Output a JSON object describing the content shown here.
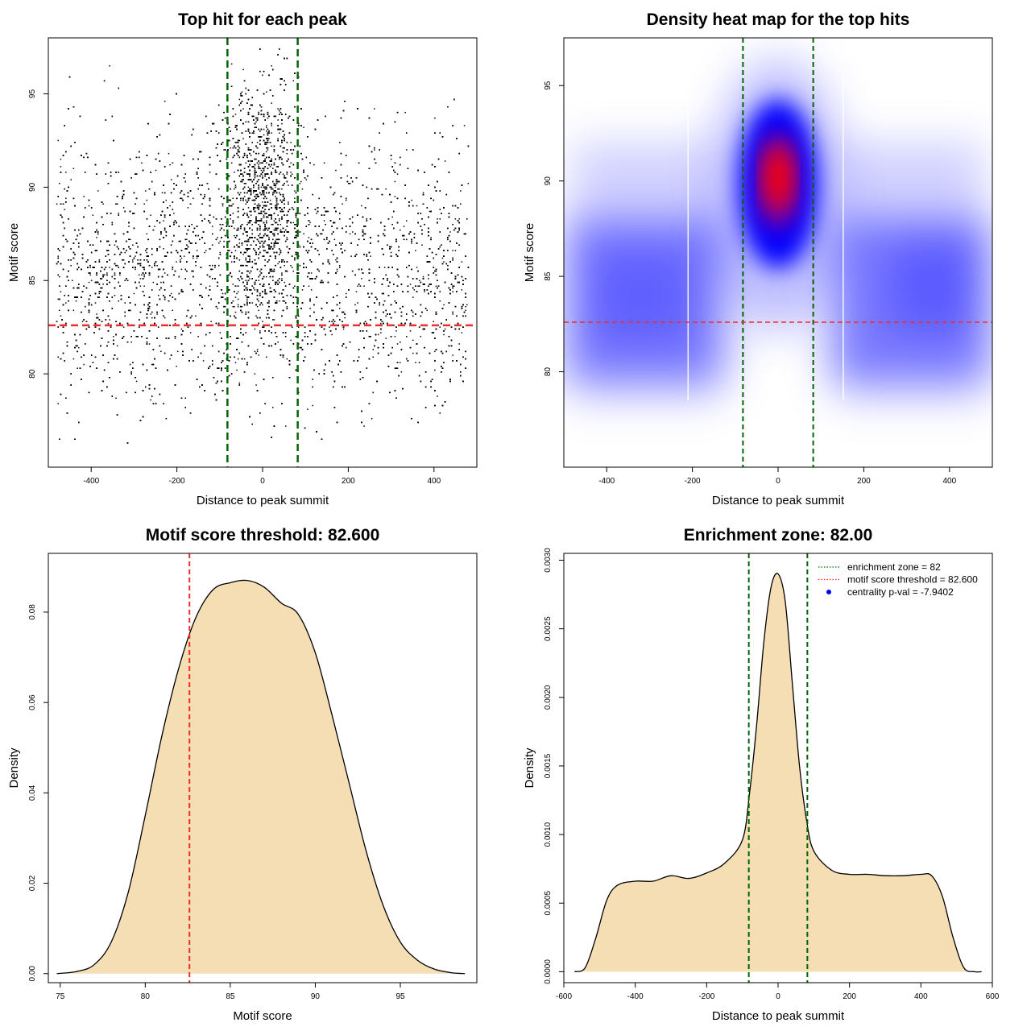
{
  "chart_data": [
    {
      "type": "scatter",
      "title": "Top hit for each peak",
      "xlabel": "Distance to peak summit",
      "ylabel": "Motif score",
      "xlim": [
        -500,
        500
      ],
      "ylim": [
        75,
        98
      ],
      "xticks": [
        -400,
        -200,
        0,
        200,
        400
      ],
      "yticks": [
        80,
        85,
        90,
        95
      ],
      "points_summary": {
        "n": 15000,
        "x_range": [
          -480,
          480
        ],
        "y_range": [
          76,
          97.5
        ],
        "background_mean_y": 85.5,
        "background_sd_y": 3.5,
        "central_cluster": {
          "x_center": 0,
          "x_sd": 42,
          "y_center": 89.5,
          "y_sd": 3.2,
          "fraction": 0.3
        }
      },
      "vlines": [
        -82,
        82
      ],
      "hline": 82.6,
      "colors": {
        "points": "#000000",
        "vlines": "#006400",
        "hline": "#ee2c2c"
      }
    },
    {
      "type": "heatmap",
      "title": "Density heat map for the top hits",
      "xlabel": "Distance to peak summit",
      "ylabel": "Motif score",
      "xlim": [
        -500,
        500
      ],
      "ylim": [
        75,
        97.5
      ],
      "xticks": [
        -400,
        -200,
        0,
        200,
        400
      ],
      "yticks": [
        80,
        85,
        90,
        95
      ],
      "peak": {
        "x": 0,
        "y": 90
      },
      "vlines": [
        -82,
        82
      ],
      "hline": 82.6,
      "colors": {
        "low": "#ffffff",
        "mid": "#0000ff",
        "high": "#ff0000",
        "vlines": "#006400",
        "hline": "#ee2c2c"
      }
    },
    {
      "type": "area",
      "title": "Motif score threshold: 82.600",
      "xlabel": "Motif score",
      "ylabel": "Density",
      "xlim": [
        74.3,
        99.5
      ],
      "ylim": [
        -0.002,
        0.093
      ],
      "xticks": [
        75,
        80,
        85,
        90,
        95
      ],
      "yticks": [
        0.0,
        0.02,
        0.04,
        0.06,
        0.08
      ],
      "ytick_labels": [
        "0.00",
        "0.02",
        "0.04",
        "0.06",
        "0.08"
      ],
      "x": [
        74.8,
        76,
        77,
        78,
        79,
        80,
        81,
        82,
        83,
        84,
        85,
        86,
        87,
        88,
        89,
        90,
        91,
        92,
        93,
        94,
        95,
        96,
        97,
        98,
        98.8
      ],
      "y": [
        0.0,
        0.0005,
        0.002,
        0.007,
        0.018,
        0.035,
        0.053,
        0.068,
        0.079,
        0.085,
        0.0865,
        0.087,
        0.0855,
        0.082,
        0.0795,
        0.071,
        0.057,
        0.042,
        0.027,
        0.015,
        0.007,
        0.003,
        0.001,
        0.0002,
        0.0
      ],
      "vline": 82.6,
      "colors": {
        "fill": "#f5deb3",
        "line": "#000000",
        "vline": "#ee2c2c"
      }
    },
    {
      "type": "area",
      "title": "Enrichment zone: 82.00",
      "xlabel": "Distance to peak summit",
      "ylabel": "Density",
      "xlim": [
        -600,
        600
      ],
      "ylim": [
        -8e-05,
        0.00305
      ],
      "xticks": [
        -600,
        -400,
        -200,
        0,
        200,
        400,
        600
      ],
      "yticks": [
        0.0,
        0.0005,
        0.001,
        0.0015,
        0.002,
        0.0025,
        0.003
      ],
      "ytick_labels": [
        "0.0000",
        "0.0005",
        "0.0010",
        "0.0015",
        "0.0020",
        "0.0025",
        "0.0030"
      ],
      "x": [
        -570,
        -540,
        -510,
        -480,
        -450,
        -400,
        -350,
        -300,
        -250,
        -200,
        -150,
        -100,
        -80,
        -60,
        -40,
        -20,
        0,
        20,
        40,
        60,
        80,
        100,
        150,
        200,
        250,
        300,
        350,
        400,
        430,
        460,
        490,
        520,
        550,
        570
      ],
      "y": [
        0.0,
        3e-05,
        0.00025,
        0.00052,
        0.00063,
        0.00066,
        0.00066,
        0.0007,
        0.00068,
        0.00072,
        0.00079,
        0.00096,
        0.0013,
        0.0018,
        0.0024,
        0.0028,
        0.0029,
        0.0027,
        0.0021,
        0.0015,
        0.0011,
        0.00088,
        0.00074,
        0.00071,
        0.00071,
        0.0007,
        0.0007,
        0.00071,
        0.0007,
        0.00055,
        0.00025,
        3e-05,
        0.0,
        0.0
      ],
      "vlines": [
        -82,
        82
      ],
      "legend": {
        "position": "top-right",
        "entries": [
          {
            "label": "enrichment zone = 82",
            "color": "#006400",
            "style": "dotted"
          },
          {
            "label": "motif score threshold = 82.600",
            "color": "#ee2c2c",
            "style": "dotted"
          },
          {
            "label": "centrality p-val = -7.9402",
            "color": "#0000ff",
            "style": "point"
          }
        ]
      },
      "colors": {
        "fill": "#f5deb3",
        "line": "#000000",
        "vlines": "#006400"
      }
    }
  ]
}
